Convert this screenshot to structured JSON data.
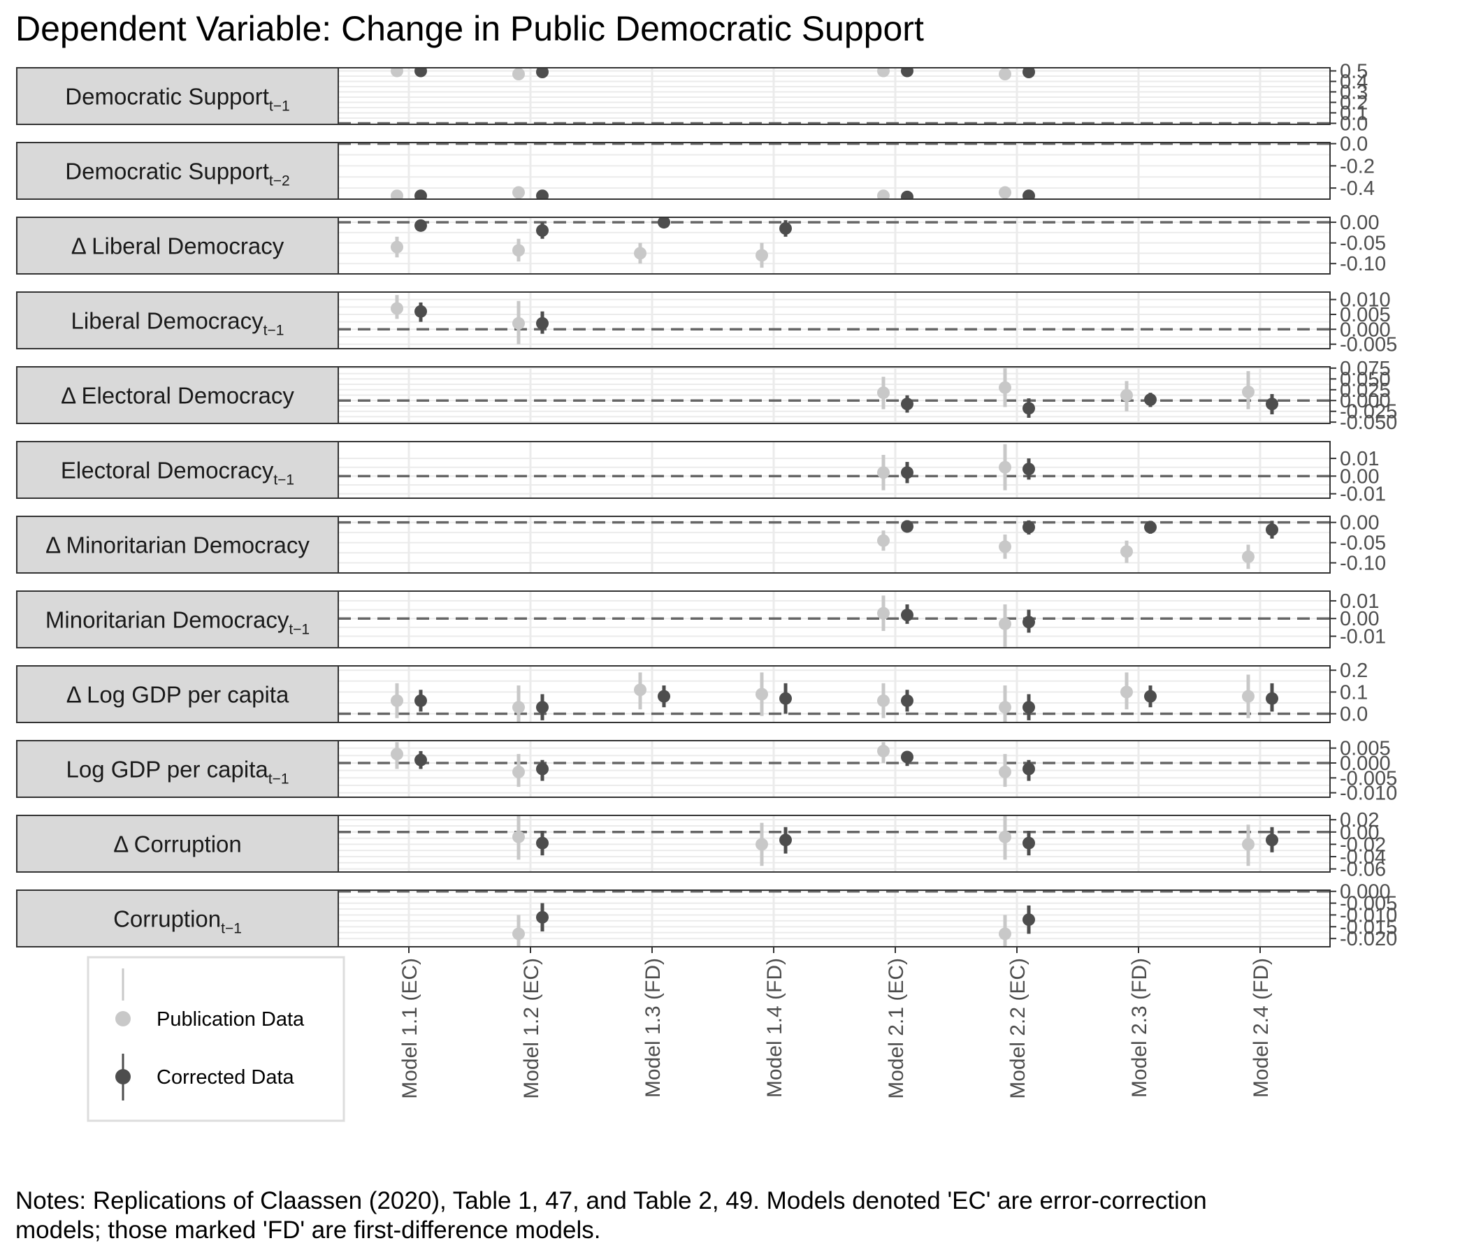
{
  "title": "Dependent Variable: Change in Public Democratic Support",
  "notes_line1": "Notes: Replications of Claassen (2020), Table 1, 47, and Table 2, 49.  Models denoted 'EC' are error-correction",
  "notes_line2": "models; those marked 'FD' are first-difference models.",
  "colors": {
    "publication": "#c8c8c8",
    "corrected": "#4d4d4d",
    "strip": "#d9d9d9",
    "grid": "#ebebeb",
    "zero_line": "#666666"
  },
  "legend": {
    "publication": "Publication Data",
    "corrected": "Corrected Data"
  },
  "chart_data": {
    "type": "scatter",
    "subtype": "coefficient plot with error bars, faceted by variable",
    "categories": [
      "Model 1.1 (EC)",
      "Model 1.2 (EC)",
      "Model 1.3 (FD)",
      "Model 1.4 (FD)",
      "Model 2.1 (EC)",
      "Model 2.2 (EC)",
      "Model 2.3 (FD)",
      "Model 2.4 (FD)"
    ],
    "series": [
      {
        "name": "Publication Data"
      },
      {
        "name": "Corrected Data"
      }
    ],
    "reference_line": 0,
    "grid": true,
    "legend_position": "bottom-left",
    "panels": [
      {
        "label": "Democratic Support",
        "sub": "t−1",
        "ylim": [
          -0.01,
          0.53
        ],
        "ticks": [
          {
            "v": 0.5,
            "t": "0.5"
          },
          {
            "v": 0.4,
            "t": "0.4"
          },
          {
            "v": 0.3,
            "t": "0.3"
          },
          {
            "v": 0.2,
            "t": "0.2"
          },
          {
            "v": 0.1,
            "t": "0.1"
          },
          {
            "v": 0.0,
            "t": "0.0"
          }
        ],
        "publication": [
          [
            0.5,
            0.49,
            0.51
          ],
          [
            0.47,
            0.46,
            0.48
          ],
          null,
          null,
          [
            0.5,
            0.49,
            0.51
          ],
          [
            0.47,
            0.46,
            0.48
          ],
          null,
          null
        ],
        "corrected": [
          [
            0.5,
            0.49,
            0.51
          ],
          [
            0.49,
            0.48,
            0.5
          ],
          null,
          null,
          [
            0.5,
            0.49,
            0.51
          ],
          [
            0.49,
            0.48,
            0.5
          ],
          null,
          null
        ]
      },
      {
        "label": "Democratic Support",
        "sub": "t−2",
        "ylim": [
          -0.5,
          0.01
        ],
        "ticks": [
          {
            "v": 0.0,
            "t": "0.0"
          },
          {
            "v": -0.2,
            "t": "-0.2"
          },
          {
            "v": -0.4,
            "t": "-0.4"
          }
        ],
        "publication": [
          [
            -0.47,
            -0.48,
            -0.46
          ],
          [
            -0.44,
            -0.45,
            -0.43
          ],
          null,
          null,
          [
            -0.47,
            -0.48,
            -0.46
          ],
          [
            -0.44,
            -0.45,
            -0.43
          ],
          null,
          null
        ],
        "corrected": [
          [
            -0.47,
            -0.48,
            -0.46
          ],
          [
            -0.47,
            -0.48,
            -0.46
          ],
          null,
          null,
          [
            -0.48,
            -0.49,
            -0.47
          ],
          [
            -0.47,
            -0.48,
            -0.46
          ],
          null,
          null
        ]
      },
      {
        "label": "Δ Liberal Democracy",
        "sub": "",
        "ylim": [
          -0.125,
          0.012
        ],
        "ticks": [
          {
            "v": 0.0,
            "t": "0.00"
          },
          {
            "v": -0.05,
            "t": "-0.05"
          },
          {
            "v": -0.1,
            "t": "-0.10"
          }
        ],
        "publication": [
          [
            -0.06,
            -0.085,
            -0.035
          ],
          [
            -0.068,
            -0.095,
            -0.04
          ],
          [
            -0.075,
            -0.1,
            -0.05
          ],
          [
            -0.08,
            -0.11,
            -0.05
          ],
          null,
          null,
          null,
          null
        ],
        "corrected": [
          [
            -0.008,
            -0.022,
            0.006
          ],
          [
            -0.02,
            -0.04,
            0.0
          ],
          [
            0.0,
            -0.01,
            0.01
          ],
          [
            -0.015,
            -0.035,
            0.005
          ],
          null,
          null,
          null,
          null
        ]
      },
      {
        "label": "Liberal Democracy",
        "sub": "t−1",
        "ylim": [
          -0.0065,
          0.0125
        ],
        "ticks": [
          {
            "v": 0.01,
            "t": "0.010"
          },
          {
            "v": 0.005,
            "t": "0.005"
          },
          {
            "v": 0.0,
            "t": "0.000"
          },
          {
            "v": -0.005,
            "t": "-0.005"
          }
        ],
        "publication": [
          [
            0.007,
            0.0035,
            0.0115
          ],
          [
            0.002,
            -0.005,
            0.0095
          ],
          null,
          null,
          null,
          null,
          null,
          null
        ],
        "corrected": [
          [
            0.006,
            0.0025,
            0.009
          ],
          [
            0.002,
            -0.0015,
            0.006
          ],
          null,
          null,
          null,
          null,
          null,
          null
        ]
      },
      {
        "label": "Δ Electoral Democracy",
        "sub": "",
        "ylim": [
          -0.053,
          0.078
        ],
        "ticks": [
          {
            "v": 0.075,
            "t": "0.075"
          },
          {
            "v": 0.05,
            "t": "0.050"
          },
          {
            "v": 0.025,
            "t": "0.025"
          },
          {
            "v": 0.0,
            "t": "0.000"
          },
          {
            "v": -0.025,
            "t": "-0.025"
          },
          {
            "v": -0.05,
            "t": "-0.050"
          }
        ],
        "publication": [
          null,
          null,
          null,
          null,
          [
            0.018,
            -0.02,
            0.055
          ],
          [
            0.03,
            -0.015,
            0.075
          ],
          [
            0.012,
            -0.025,
            0.045
          ],
          [
            0.02,
            -0.02,
            0.068
          ]
        ],
        "corrected": [
          null,
          null,
          null,
          null,
          [
            -0.008,
            -0.028,
            0.012
          ],
          [
            -0.018,
            -0.04,
            0.005
          ],
          [
            0.002,
            -0.015,
            0.018
          ],
          [
            -0.008,
            -0.032,
            0.015
          ]
        ]
      },
      {
        "label": "Electoral Democracy",
        "sub": "t−1",
        "ylim": [
          -0.0125,
          0.0195
        ],
        "ticks": [
          {
            "v": 0.01,
            "t": "0.01"
          },
          {
            "v": 0.0,
            "t": "0.00"
          },
          {
            "v": -0.01,
            "t": "-0.01"
          }
        ],
        "publication": [
          null,
          null,
          null,
          null,
          [
            0.002,
            -0.008,
            0.012
          ],
          [
            0.005,
            -0.008,
            0.018
          ],
          null,
          null
        ],
        "corrected": [
          null,
          null,
          null,
          null,
          [
            0.002,
            -0.004,
            0.008
          ],
          [
            0.004,
            -0.002,
            0.01
          ],
          null,
          null
        ]
      },
      {
        "label": "Δ Minoritarian Democracy",
        "sub": "",
        "ylim": [
          -0.125,
          0.015
        ],
        "ticks": [
          {
            "v": 0.0,
            "t": "0.00"
          },
          {
            "v": -0.05,
            "t": "-0.05"
          },
          {
            "v": -0.1,
            "t": "-0.10"
          }
        ],
        "publication": [
          null,
          null,
          null,
          null,
          [
            -0.045,
            -0.07,
            -0.02
          ],
          [
            -0.06,
            -0.09,
            -0.03
          ],
          [
            -0.072,
            -0.1,
            -0.045
          ],
          [
            -0.085,
            -0.115,
            -0.055
          ]
        ],
        "corrected": [
          null,
          null,
          null,
          null,
          [
            -0.01,
            -0.025,
            0.005
          ],
          [
            -0.012,
            -0.03,
            0.005
          ],
          [
            -0.012,
            -0.028,
            0.004
          ],
          [
            -0.018,
            -0.04,
            0.004
          ]
        ]
      },
      {
        "label": "Minoritarian Democracy",
        "sub": "t−1",
        "ylim": [
          -0.0165,
          0.0155
        ],
        "ticks": [
          {
            "v": 0.01,
            "t": "0.01"
          },
          {
            "v": 0.0,
            "t": "0.00"
          },
          {
            "v": -0.01,
            "t": "-0.01"
          }
        ],
        "publication": [
          null,
          null,
          null,
          null,
          [
            0.003,
            -0.007,
            0.013
          ],
          [
            -0.003,
            -0.016,
            0.008
          ],
          null,
          null
        ],
        "corrected": [
          null,
          null,
          null,
          null,
          [
            0.002,
            -0.003,
            0.008
          ],
          [
            -0.002,
            -0.008,
            0.005
          ],
          null,
          null
        ]
      },
      {
        "label": "Δ Log GDP per capita",
        "sub": "",
        "ylim": [
          -0.04,
          0.22
        ],
        "ticks": [
          {
            "v": 0.2,
            "t": "0.2"
          },
          {
            "v": 0.1,
            "t": "0.1"
          },
          {
            "v": 0.0,
            "t": "0.0"
          }
        ],
        "publication": [
          [
            0.06,
            -0.02,
            0.14
          ],
          [
            0.03,
            -0.07,
            0.13
          ],
          [
            0.11,
            0.02,
            0.19
          ],
          [
            0.09,
            -0.01,
            0.19
          ],
          [
            0.06,
            -0.02,
            0.14
          ],
          [
            0.03,
            -0.07,
            0.13
          ],
          [
            0.1,
            0.02,
            0.19
          ],
          [
            0.08,
            -0.02,
            0.18
          ]
        ],
        "corrected": [
          [
            0.06,
            0.01,
            0.11
          ],
          [
            0.03,
            -0.03,
            0.09
          ],
          [
            0.08,
            0.03,
            0.13
          ],
          [
            0.07,
            0.0,
            0.14
          ],
          [
            0.06,
            0.01,
            0.11
          ],
          [
            0.03,
            -0.03,
            0.09
          ],
          [
            0.08,
            0.03,
            0.13
          ],
          [
            0.07,
            0.01,
            0.14
          ]
        ]
      },
      {
        "label": "Log GDP per capita",
        "sub": "t−1",
        "ylim": [
          -0.0115,
          0.0075
        ],
        "ticks": [
          {
            "v": 0.005,
            "t": "0.005"
          },
          {
            "v": 0.0,
            "t": "0.000"
          },
          {
            "v": -0.005,
            "t": "-0.005"
          },
          {
            "v": -0.01,
            "t": "-0.010"
          }
        ],
        "publication": [
          [
            0.003,
            -0.002,
            0.007
          ],
          [
            -0.003,
            -0.008,
            0.003
          ],
          null,
          null,
          [
            0.004,
            0.0,
            0.007
          ],
          [
            -0.003,
            -0.008,
            0.003
          ],
          null,
          null
        ],
        "corrected": [
          [
            0.001,
            -0.002,
            0.004
          ],
          [
            -0.002,
            -0.006,
            0.001
          ],
          null,
          null,
          [
            0.002,
            -0.001,
            0.004
          ],
          [
            -0.002,
            -0.006,
            0.001
          ],
          null,
          null
        ]
      },
      {
        "label": "Δ Corruption",
        "sub": "",
        "ylim": [
          -0.065,
          0.027
        ],
        "ticks": [
          {
            "v": 0.02,
            "t": "0.02"
          },
          {
            "v": 0.0,
            "t": "0.00"
          },
          {
            "v": -0.02,
            "t": "-0.02"
          },
          {
            "v": -0.04,
            "t": "-0.04"
          },
          {
            "v": -0.06,
            "t": "-0.06"
          }
        ],
        "publication": [
          null,
          [
            -0.008,
            -0.045,
            0.03
          ],
          null,
          [
            -0.02,
            -0.055,
            0.015
          ],
          null,
          [
            -0.008,
            -0.045,
            0.03
          ],
          null,
          [
            -0.02,
            -0.055,
            0.012
          ]
        ],
        "corrected": [
          null,
          [
            -0.018,
            -0.038,
            0.002
          ],
          null,
          [
            -0.013,
            -0.035,
            0.008
          ],
          null,
          [
            -0.018,
            -0.038,
            0.002
          ],
          null,
          [
            -0.013,
            -0.033,
            0.008
          ]
        ]
      },
      {
        "label": "Corruption",
        "sub": "t−1",
        "ylim": [
          -0.0235,
          0.0005
        ],
        "ticks": [
          {
            "v": 0.0,
            "t": "0.000"
          },
          {
            "v": -0.005,
            "t": "-0.005"
          },
          {
            "v": -0.01,
            "t": "-0.010"
          },
          {
            "v": -0.015,
            "t": "-0.015"
          },
          {
            "v": -0.02,
            "t": "-0.020"
          }
        ],
        "publication": [
          null,
          [
            -0.018,
            -0.025,
            -0.01
          ],
          null,
          null,
          null,
          [
            -0.018,
            -0.025,
            -0.01
          ],
          null,
          null
        ],
        "corrected": [
          null,
          [
            -0.011,
            -0.017,
            -0.005
          ],
          null,
          null,
          null,
          [
            -0.012,
            -0.018,
            -0.006
          ],
          null,
          null
        ]
      }
    ]
  }
}
